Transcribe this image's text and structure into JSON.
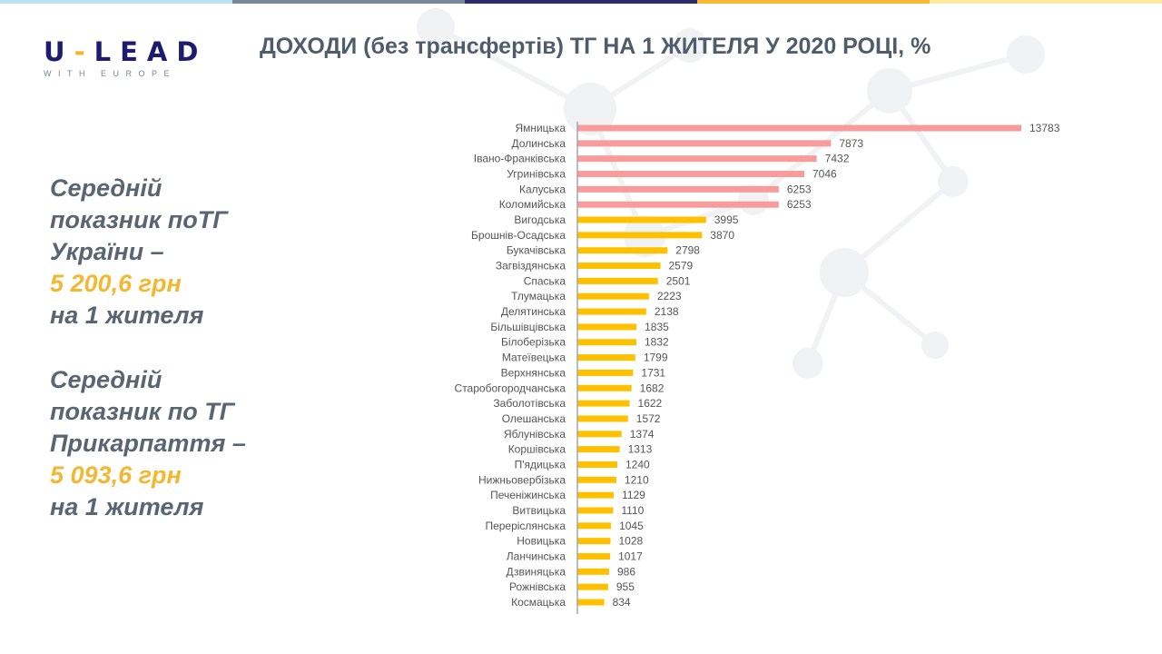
{
  "colors": {
    "top_stripes": [
      "#bde3f3",
      "#778899",
      "#2b2a6b",
      "#f7b733",
      "#fde9a0"
    ],
    "highlight": "#f4b731",
    "text": "#596573"
  },
  "logo": {
    "main_left": "U",
    "main_right": "LEAD",
    "sub": "WITH EUROPE"
  },
  "title": "ДОХОДИ (без трансфертів) ТГ НА 1 ЖИТЕЛЯ У 2020 РОЦІ, %",
  "side": {
    "block1": {
      "line1": "Середній",
      "line2": "показник поТГ",
      "line3": "України –",
      "value": "5 200,6 грн",
      "line5": "на 1  жителя"
    },
    "block2": {
      "line1": "Середній",
      "line2": "показник по ТГ",
      "line3": "Прикарпаття –",
      "value": "5 093,6 грн",
      "line5": "на 1 жителя"
    }
  },
  "chart_data": {
    "type": "bar",
    "orientation": "horizontal",
    "title": "",
    "xlabel": "",
    "ylabel": "",
    "grid": false,
    "data_labels": true,
    "colors": {
      "above_average": "#f99b9b",
      "below_average": "#ffc000"
    },
    "categories": [
      "Ямницька",
      "Долинська",
      "Івано-Франківська",
      "Угринівська",
      "Калуська",
      "Коломийська",
      "Вигодська",
      "Брошнів-Осадська",
      "Букачівська",
      "Загвіздянська",
      "Спаська",
      "Тлумацька",
      "Делятинська",
      "Більшівцівська",
      "Білоберізька",
      "Матеївецька",
      "Верхнянська",
      "Старобогородчанська",
      "Заболотівська",
      "Олешанська",
      "Яблунівська",
      "Коршівська",
      "П'ядицька",
      "Нижньовербізька",
      "Печеніжинська",
      "Витвицька",
      "Переріслянська",
      "Новицька",
      "Ланчинська",
      "Дзвиняцька",
      "Рожнівська",
      "Космацька"
    ],
    "values": [
      13783,
      7873,
      7432,
      7046,
      6253,
      6253,
      3995,
      3870,
      2798,
      2579,
      2501,
      2223,
      2138,
      1835,
      1832,
      1799,
      1731,
      1682,
      1622,
      1572,
      1374,
      1313,
      1240,
      1210,
      1129,
      1110,
      1045,
      1028,
      1017,
      986,
      955,
      834
    ],
    "highlighted_count": 6
  }
}
